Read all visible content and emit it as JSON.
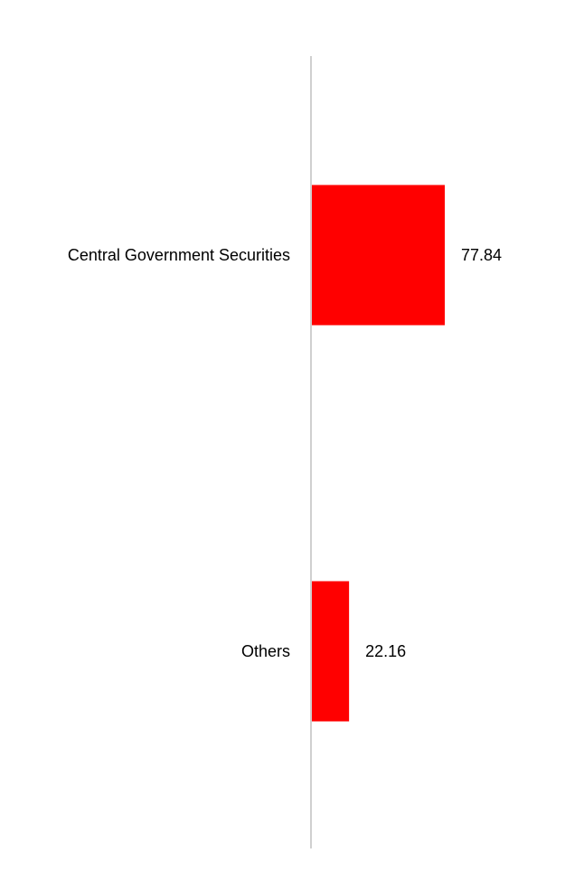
{
  "chart_data": {
    "type": "bar",
    "orientation": "horizontal",
    "categories": [
      "Central Government Securities",
      "Others"
    ],
    "values": [
      77.84,
      22.16
    ],
    "value_labels": [
      "77.84",
      "22.16"
    ],
    "title": "",
    "xlabel": "",
    "ylabel": "",
    "xlim": [
      0,
      100
    ],
    "grid": false,
    "legend": "none",
    "bar_color": "#ff0000",
    "axis_color": "#d0d0d0"
  }
}
